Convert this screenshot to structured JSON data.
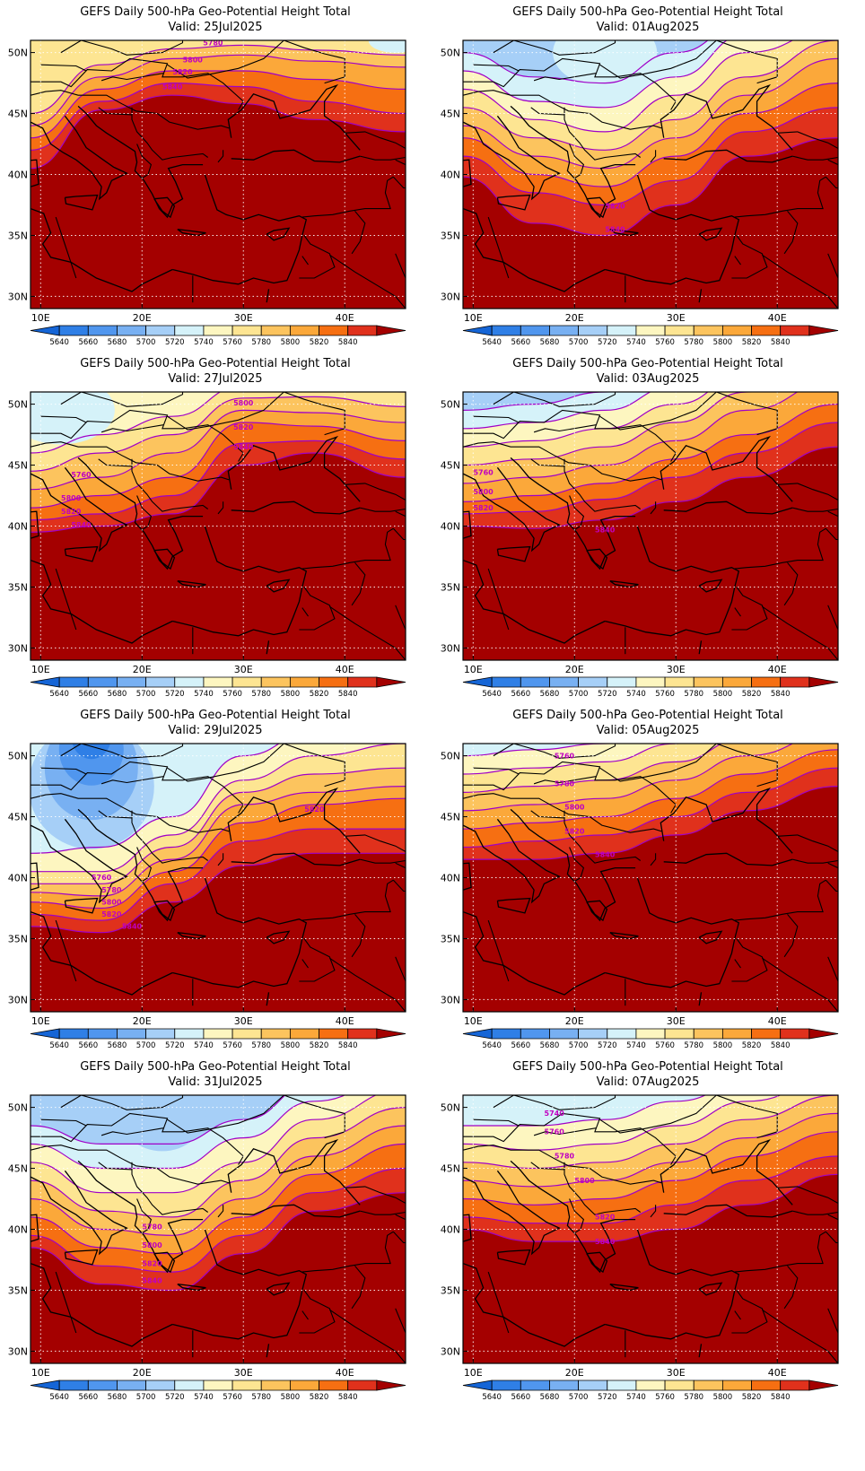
{
  "figure": {
    "panels": [
      {
        "id": "p1",
        "title": "GEFS Daily 500-hPa Geo-Potential Height Total",
        "valid": "Valid: 25Jul2025",
        "ridge_lines": [
          [
            40.5,
            45.3,
            46.5,
            45.8,
            44.5,
            43.5
          ],
          [
            42,
            46,
            47.5,
            47.2,
            46,
            45
          ],
          [
            43,
            47,
            48.5,
            48.5,
            47.8,
            47
          ],
          [
            44,
            48,
            49.5,
            49.8,
            49.3,
            48.8
          ],
          [
            45,
            49,
            50.3,
            50.6,
            50.2,
            49.8
          ]
        ],
        "labels": [
          {
            "text": "5780",
            "lon": 27,
            "lat": 50.6
          },
          {
            "text": "5800",
            "lon": 25,
            "lat": 49.2
          },
          {
            "text": "5820",
            "lon": 24,
            "lat": 48.2
          },
          {
            "text": "5840",
            "lon": 23,
            "lat": 47.0
          }
        ]
      },
      {
        "id": "p2",
        "title": "GEFS Daily 500-hPa Geo-Potential Height Total",
        "valid": "Valid: 01Aug2025",
        "trough_lines": [
          [
            39.8,
            36,
            35,
            37.5,
            41.5,
            43
          ],
          [
            41.5,
            38.5,
            37.5,
            39.5,
            43.5,
            45.5
          ],
          [
            43,
            40,
            39,
            41.5,
            45,
            47.5
          ],
          [
            44,
            41.5,
            40.5,
            43,
            46.5,
            49.5
          ],
          [
            45.5,
            43,
            42,
            44.5,
            48,
            51
          ],
          [
            47,
            44.5,
            43.5,
            46.5,
            50,
            52
          ],
          [
            48.5,
            46,
            45.5,
            48,
            51.5,
            53
          ],
          [
            50,
            48,
            47.5,
            50,
            52.5,
            54
          ]
        ],
        "labels": [
          {
            "text": "5840",
            "lon": 24,
            "lat": 35.3
          },
          {
            "text": "5820",
            "lon": 24,
            "lat": 37.2
          }
        ]
      },
      {
        "id": "p3",
        "title": "GEFS Daily 500-hPa Geo-Potential Height Total",
        "valid": "Valid: 27Jul2025",
        "ridge_lines": [
          [
            39.5,
            40,
            41,
            45,
            46,
            44
          ],
          [
            40.5,
            41,
            42.5,
            46.8,
            47,
            45.5
          ],
          [
            41.5,
            42.5,
            44,
            48.5,
            48.2,
            47
          ],
          [
            43,
            44,
            46,
            49.5,
            49.3,
            48.5
          ],
          [
            44.5,
            46,
            47.5,
            50.5,
            50.6,
            49.8
          ],
          [
            46,
            47.5,
            49,
            51.5,
            51.6,
            51
          ]
        ],
        "labels": [
          {
            "text": "5760",
            "lon": 14,
            "lat": 44.0
          },
          {
            "text": "5800",
            "lon": 13,
            "lat": 42.1
          },
          {
            "text": "5820",
            "lon": 13,
            "lat": 41.0
          },
          {
            "text": "5840",
            "lon": 14,
            "lat": 39.9
          },
          {
            "text": "5800",
            "lon": 30,
            "lat": 49.9
          },
          {
            "text": "5820",
            "lon": 30,
            "lat": 47.9
          },
          {
            "text": "5840",
            "lon": 30,
            "lat": 46.3
          }
        ]
      },
      {
        "id": "p4",
        "title": "GEFS Daily 500-hPa Geo-Potential Height Total",
        "valid": "Valid: 03Aug2025",
        "zonal_lines": [
          [
            40,
            39.8,
            40.5,
            42,
            44,
            46.5
          ],
          [
            41,
            41.2,
            42.2,
            44,
            46,
            48.5
          ],
          [
            42,
            42.5,
            43.5,
            45.5,
            47.5,
            50
          ],
          [
            43.5,
            44,
            45,
            47,
            49.5,
            52
          ],
          [
            45,
            45.5,
            46.5,
            48.5,
            51,
            53.5
          ],
          [
            46.5,
            47,
            48,
            50,
            52.5,
            55
          ],
          [
            48,
            48.5,
            49.5,
            51.5,
            54,
            56.5
          ],
          [
            49.5,
            50,
            51,
            53,
            55.5,
            58
          ]
        ],
        "labels": [
          {
            "text": "5760",
            "lon": 11,
            "lat": 44.2
          },
          {
            "text": "5800",
            "lon": 11,
            "lat": 42.6
          },
          {
            "text": "5820",
            "lon": 11,
            "lat": 41.3
          },
          {
            "text": "5840",
            "lon": 23,
            "lat": 39.5
          }
        ]
      },
      {
        "id": "p5",
        "title": "GEFS Daily 500-hPa Geo-Potential Height Total",
        "valid": "Valid: 29Jul2025",
        "trough_lines": [
          [
            36,
            35.5,
            38,
            41,
            42,
            42
          ],
          [
            37,
            36.5,
            39.5,
            43,
            44,
            44
          ],
          [
            38,
            37.5,
            40.5,
            44.5,
            46,
            46.5
          ],
          [
            38.8,
            38.5,
            41.5,
            46,
            47,
            47.5
          ],
          [
            39.5,
            39.5,
            42.5,
            47,
            48.5,
            49
          ],
          [
            40.5,
            40.5,
            43.5,
            48,
            50,
            51
          ],
          [
            42,
            42.5,
            45,
            50,
            52,
            53
          ]
        ],
        "labels": [
          {
            "text": "5760",
            "lon": 16,
            "lat": 39.8
          },
          {
            "text": "5780",
            "lon": 17,
            "lat": 38.8
          },
          {
            "text": "5800",
            "lon": 17,
            "lat": 37.8
          },
          {
            "text": "5820",
            "lon": 17,
            "lat": 36.8
          },
          {
            "text": "5840",
            "lon": 19,
            "lat": 35.8
          },
          {
            "text": "5820",
            "lon": 37,
            "lat": 45.4
          }
        ]
      },
      {
        "id": "p6",
        "title": "GEFS Daily 500-hPa Geo-Potential Height Total",
        "valid": "Valid: 05Aug2025",
        "zonal_lines": [
          [
            41.5,
            41.5,
            42,
            43.5,
            45.5,
            47.5
          ],
          [
            42.5,
            43,
            43.5,
            45,
            47,
            49
          ],
          [
            44,
            44.5,
            45,
            46.5,
            48.5,
            50.5
          ],
          [
            45.5,
            46,
            46.5,
            48,
            50,
            52
          ],
          [
            47,
            47.5,
            48,
            49.5,
            51.5,
            53.5
          ],
          [
            48.5,
            49,
            49.5,
            51,
            53,
            55
          ],
          [
            50,
            50.5,
            51,
            52.5,
            54.5,
            56.5
          ]
        ],
        "labels": [
          {
            "text": "5760",
            "lon": 19,
            "lat": 49.8
          },
          {
            "text": "5780",
            "lon": 19,
            "lat": 47.5
          },
          {
            "text": "5800",
            "lon": 20,
            "lat": 45.6
          },
          {
            "text": "5820",
            "lon": 20,
            "lat": 43.6
          },
          {
            "text": "5840",
            "lon": 23,
            "lat": 41.7
          }
        ]
      },
      {
        "id": "p7",
        "title": "GEFS Daily 500-hPa Geo-Potential Height Total",
        "valid": "Valid: 31Jul2025",
        "trough_lines": [
          [
            38.5,
            35.5,
            35,
            38,
            41.5,
            43
          ],
          [
            39.5,
            37,
            36.5,
            39.5,
            43,
            45
          ],
          [
            41,
            38.5,
            38,
            41,
            44.5,
            47
          ],
          [
            42.5,
            40,
            39.5,
            42.5,
            46,
            48.5
          ],
          [
            44,
            41.5,
            41,
            44,
            47.5,
            50
          ],
          [
            45.5,
            43,
            43,
            45.5,
            49,
            51.5
          ],
          [
            47,
            45,
            45,
            47.5,
            50.5,
            53
          ],
          [
            48.5,
            47,
            47,
            49,
            52,
            54
          ]
        ],
        "labels": [
          {
            "text": "5780",
            "lon": 21,
            "lat": 40.0
          },
          {
            "text": "5800",
            "lon": 21,
            "lat": 38.5
          },
          {
            "text": "5820",
            "lon": 21,
            "lat": 37.0
          },
          {
            "text": "5840",
            "lon": 21,
            "lat": 35.6
          }
        ]
      },
      {
        "id": "p8",
        "title": "GEFS Daily 500-hPa Geo-Potential Height Total",
        "valid": "Valid: 07Aug2025",
        "zonal_lines": [
          [
            40,
            39,
            39,
            40,
            42,
            44.5
          ],
          [
            41,
            40.5,
            40.5,
            42,
            44,
            46
          ],
          [
            42.5,
            42,
            42.5,
            44,
            46,
            48
          ],
          [
            44,
            43.5,
            44,
            45.5,
            47.5,
            49.5
          ],
          [
            45.5,
            45,
            45.5,
            47,
            49,
            51
          ],
          [
            47,
            46.5,
            47,
            48.5,
            50.5,
            52.5
          ],
          [
            48.5,
            48.5,
            49,
            50.5,
            52,
            54
          ]
        ],
        "labels": [
          {
            "text": "5740",
            "lon": 18,
            "lat": 49.3
          },
          {
            "text": "5760",
            "lon": 18,
            "lat": 47.8
          },
          {
            "text": "5780",
            "lon": 19,
            "lat": 45.8
          },
          {
            "text": "5800",
            "lon": 21,
            "lat": 43.8
          },
          {
            "text": "5820",
            "lon": 23,
            "lat": 40.8
          },
          {
            "text": "5840",
            "lon": 23,
            "lat": 38.8
          }
        ]
      }
    ],
    "axes": {
      "lon_ticks": [
        "10E",
        "20E",
        "30E",
        "40E"
      ],
      "lon_values": [
        10,
        20,
        30,
        40
      ],
      "lat_ticks": [
        "30N",
        "35N",
        "40N",
        "45N",
        "50N"
      ],
      "lat_values": [
        30,
        35,
        40,
        45,
        50
      ],
      "lon_range": [
        9,
        46
      ],
      "lat_range": [
        29,
        51
      ]
    },
    "colorbar": {
      "labels": [
        "5640",
        "5660",
        "5680",
        "5700",
        "5720",
        "5740",
        "5760",
        "5780",
        "5800",
        "5820",
        "5840"
      ],
      "colors": [
        "#1565d6",
        "#2f7fe6",
        "#5096ee",
        "#78b0f2",
        "#a6cff7",
        "#d5f2f9",
        "#fdf6c0",
        "#fde592",
        "#fcc45e",
        "#fba83a",
        "#f66f12",
        "#e0311c",
        "#a40000"
      ]
    },
    "style": {
      "contour_color": "#a000c8",
      "grid_color": "#ffffff",
      "coast_color": "#000000"
    }
  }
}
